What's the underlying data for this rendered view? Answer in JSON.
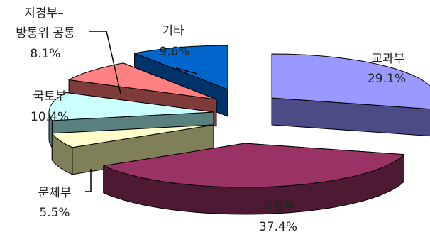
{
  "chart_data": {
    "type": "pie",
    "title": "",
    "style": "3d-exploded",
    "unit": "%",
    "slices": [
      {
        "label": "교과부",
        "value": 29.1,
        "value_text": "29.1%",
        "color": "#9999ff",
        "side_color": "#4b4b86"
      },
      {
        "label": "지경부",
        "value": 37.4,
        "value_text": "37.4%",
        "color": "#993366",
        "side_color": "#4e1a33"
      },
      {
        "label": "문체부",
        "value": 5.5,
        "value_text": "5.5%",
        "color": "#ffffcc",
        "side_color": "#7f7f5a"
      },
      {
        "label": "국토부",
        "value": 10.4,
        "value_text": "10.4%",
        "color": "#ccffff",
        "side_color": "#5a7f7f"
      },
      {
        "label_lines": [
          "지경부–",
          "방통위 공통"
        ],
        "value": 8.1,
        "value_text": "8.1%",
        "color": "#ff8080",
        "side_color": "#7f3a3a"
      },
      {
        "label": "기타",
        "value": 9.6,
        "value_text": "9.6%",
        "color": "#0066cc",
        "side_color": "#00336a"
      }
    ]
  }
}
